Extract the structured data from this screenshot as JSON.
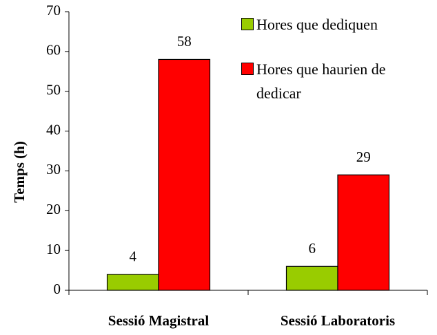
{
  "chart_data": {
    "type": "bar",
    "categories": [
      "Sessió Magistral",
      "Sessió Laboratoris"
    ],
    "series": [
      {
        "name": "Hores que dediquen",
        "color": "#99cc00",
        "values": [
          4,
          6
        ]
      },
      {
        "name": "Hores que haurien de dedicar",
        "color": "#ff0000",
        "values": [
          58,
          29
        ]
      }
    ],
    "y_label": "Temps (h)",
    "ylim": [
      0,
      70
    ],
    "yticks": [
      0,
      10,
      20,
      30,
      40,
      50,
      60,
      70
    ],
    "grid": false,
    "legend": "upper right"
  }
}
